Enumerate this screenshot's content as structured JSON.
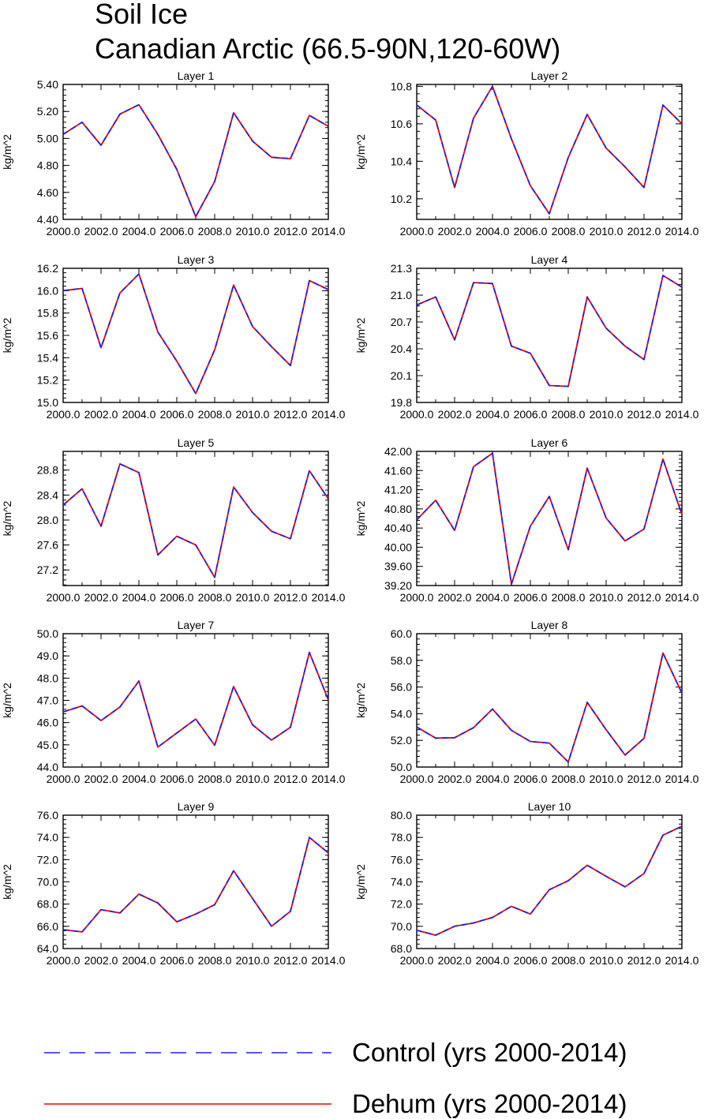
{
  "title": "Soil Ice",
  "subtitle": "Canadian Arctic (66.5-90N,120-60W)",
  "colors": {
    "control": "#2020dd",
    "dehum": "#ee0000",
    "axis": "#000000"
  },
  "legend": [
    {
      "label": "Control (yrs 2000-2014)",
      "style": "dashed",
      "color": "#2020dd"
    },
    {
      "label": "Dehum (yrs 2000-2014)",
      "style": "solid",
      "color": "#ee0000"
    }
  ],
  "chart_data": [
    {
      "type": "line",
      "title": "Layer 1",
      "ylabel": "kg/m^2",
      "x": [
        2000,
        2001,
        2002,
        2003,
        2004,
        2005,
        2006,
        2007,
        2008,
        2009,
        2010,
        2011,
        2012,
        2013,
        2014
      ],
      "xlim": [
        2000,
        2014
      ],
      "xticks": [
        "2000.0",
        "2002.0",
        "2004.0",
        "2006.0",
        "2008.0",
        "2010.0",
        "2012.0",
        "2014.0"
      ],
      "ylim": [
        4.4,
        5.4
      ],
      "yticks": [
        "4.40",
        "4.60",
        "4.80",
        "5.00",
        "5.20",
        "5.40"
      ],
      "series": [
        {
          "name": "Control (yrs 2000-2014)",
          "values": [
            5.03,
            5.12,
            4.95,
            5.18,
            5.25,
            5.03,
            4.77,
            4.42,
            4.68,
            5.19,
            4.98,
            4.86,
            4.85,
            5.17,
            5.09
          ]
        },
        {
          "name": "Dehum (yrs 2000-2014)",
          "values": [
            5.03,
            5.12,
            4.95,
            5.18,
            5.25,
            5.03,
            4.77,
            4.42,
            4.68,
            5.19,
            4.98,
            4.86,
            4.85,
            5.17,
            5.09
          ]
        }
      ]
    },
    {
      "type": "line",
      "title": "Layer 2",
      "ylabel": "kg/m^2",
      "x": [
        2000,
        2001,
        2002,
        2003,
        2004,
        2005,
        2006,
        2007,
        2008,
        2009,
        2010,
        2011,
        2012,
        2013,
        2014
      ],
      "xlim": [
        2000,
        2014
      ],
      "xticks": [
        "2000.0",
        "2002.0",
        "2004.0",
        "2006.0",
        "2008.0",
        "2010.0",
        "2012.0",
        "2014.0"
      ],
      "ylim": [
        10.09,
        10.81
      ],
      "yticks": [
        "10.2",
        "10.4",
        "10.6",
        "10.8"
      ],
      "series": [
        {
          "name": "Control (yrs 2000-2014)",
          "values": [
            10.7,
            10.62,
            10.26,
            10.63,
            10.8,
            10.52,
            10.27,
            10.12,
            10.42,
            10.65,
            10.47,
            10.37,
            10.26,
            10.7,
            10.6
          ]
        },
        {
          "name": "Dehum (yrs 2000-2014)",
          "values": [
            10.7,
            10.62,
            10.26,
            10.63,
            10.8,
            10.52,
            10.27,
            10.12,
            10.42,
            10.65,
            10.47,
            10.37,
            10.26,
            10.7,
            10.6
          ]
        }
      ]
    },
    {
      "type": "line",
      "title": "Layer 3",
      "ylabel": "kg/m^2",
      "x": [
        2000,
        2001,
        2002,
        2003,
        2004,
        2005,
        2006,
        2007,
        2008,
        2009,
        2010,
        2011,
        2012,
        2013,
        2014
      ],
      "xlim": [
        2000,
        2014
      ],
      "xticks": [
        "2000.0",
        "2002.0",
        "2004.0",
        "2006.0",
        "2008.0",
        "2010.0",
        "2012.0",
        "2014.0"
      ],
      "ylim": [
        15.0,
        16.2
      ],
      "yticks": [
        "15.0",
        "15.2",
        "15.4",
        "15.6",
        "15.8",
        "16.0",
        "16.2"
      ],
      "series": [
        {
          "name": "Control (yrs 2000-2014)",
          "values": [
            16.0,
            16.02,
            15.49,
            15.98,
            16.15,
            15.63,
            15.37,
            15.08,
            15.47,
            16.05,
            15.68,
            15.5,
            15.33,
            16.09,
            16.01
          ]
        },
        {
          "name": "Dehum (yrs 2000-2014)",
          "values": [
            16.0,
            16.02,
            15.49,
            15.98,
            16.15,
            15.63,
            15.37,
            15.08,
            15.47,
            16.05,
            15.68,
            15.5,
            15.33,
            16.09,
            16.01
          ]
        }
      ]
    },
    {
      "type": "line",
      "title": "Layer 4",
      "ylabel": "kg/m^2",
      "x": [
        2000,
        2001,
        2002,
        2003,
        2004,
        2005,
        2006,
        2007,
        2008,
        2009,
        2010,
        2011,
        2012,
        2013,
        2014
      ],
      "xlim": [
        2000,
        2014
      ],
      "xticks": [
        "2000.0",
        "2002.0",
        "2004.0",
        "2006.0",
        "2008.0",
        "2010.0",
        "2012.0",
        "2014.0"
      ],
      "ylim": [
        19.8,
        21.3
      ],
      "yticks": [
        "19.8",
        "20.1",
        "20.4",
        "20.7",
        "21.0",
        "21.3"
      ],
      "series": [
        {
          "name": "Control (yrs 2000-2014)",
          "values": [
            20.89,
            20.98,
            20.5,
            21.14,
            21.13,
            20.43,
            20.35,
            19.99,
            19.98,
            20.98,
            20.63,
            20.43,
            20.28,
            21.22,
            21.09
          ]
        },
        {
          "name": "Dehum (yrs 2000-2014)",
          "values": [
            20.89,
            20.98,
            20.5,
            21.14,
            21.13,
            20.43,
            20.35,
            19.99,
            19.98,
            20.98,
            20.63,
            20.43,
            20.28,
            21.22,
            21.09
          ]
        }
      ]
    },
    {
      "type": "line",
      "title": "Layer 5",
      "ylabel": "kg/m^2",
      "x": [
        2000,
        2001,
        2002,
        2003,
        2004,
        2005,
        2006,
        2007,
        2008,
        2009,
        2010,
        2011,
        2012,
        2013,
        2014
      ],
      "xlim": [
        2000,
        2014
      ],
      "xticks": [
        "2000.0",
        "2002.0",
        "2004.0",
        "2006.0",
        "2008.0",
        "2010.0",
        "2012.0",
        "2014.0"
      ],
      "ylim": [
        26.95,
        29.1
      ],
      "yticks": [
        "27.2",
        "27.6",
        "28.0",
        "28.4",
        "28.8"
      ],
      "series": [
        {
          "name": "Control (yrs 2000-2014)",
          "values": [
            28.24,
            28.5,
            27.9,
            28.9,
            28.76,
            27.44,
            27.74,
            27.6,
            27.08,
            28.53,
            28.12,
            27.82,
            27.7,
            28.79,
            28.34
          ]
        },
        {
          "name": "Dehum (yrs 2000-2014)",
          "values": [
            28.24,
            28.5,
            27.9,
            28.9,
            28.76,
            27.44,
            27.74,
            27.6,
            27.08,
            28.53,
            28.12,
            27.82,
            27.7,
            28.79,
            28.34
          ]
        }
      ]
    },
    {
      "type": "line",
      "title": "Layer 6",
      "ylabel": "kg/m^2",
      "x": [
        2000,
        2001,
        2002,
        2003,
        2004,
        2005,
        2006,
        2007,
        2008,
        2009,
        2010,
        2011,
        2012,
        2013,
        2014
      ],
      "xlim": [
        2000,
        2014
      ],
      "xticks": [
        "2000.0",
        "2002.0",
        "2004.0",
        "2006.0",
        "2008.0",
        "2010.0",
        "2012.0",
        "2014.0"
      ],
      "ylim": [
        39.2,
        42.0
      ],
      "yticks": [
        "39.20",
        "39.60",
        "40.00",
        "40.40",
        "40.80",
        "41.20",
        "41.60",
        "42.00"
      ],
      "series": [
        {
          "name": "Control (yrs 2000-2014)",
          "values": [
            40.57,
            40.98,
            40.35,
            41.68,
            41.96,
            39.23,
            40.44,
            41.06,
            39.95,
            41.65,
            40.61,
            40.13,
            40.38,
            41.84,
            40.68
          ]
        },
        {
          "name": "Dehum (yrs 2000-2014)",
          "values": [
            40.57,
            40.98,
            40.35,
            41.68,
            41.96,
            39.23,
            40.44,
            41.06,
            39.95,
            41.65,
            40.61,
            40.13,
            40.38,
            41.84,
            40.68
          ]
        }
      ]
    },
    {
      "type": "line",
      "title": "Layer 7",
      "ylabel": "kg/m^2",
      "x": [
        2000,
        2001,
        2002,
        2003,
        2004,
        2005,
        2006,
        2007,
        2008,
        2009,
        2010,
        2011,
        2012,
        2013,
        2014
      ],
      "xlim": [
        2000,
        2014
      ],
      "xticks": [
        "2000.0",
        "2002.0",
        "2004.0",
        "2006.0",
        "2008.0",
        "2010.0",
        "2012.0",
        "2014.0"
      ],
      "ylim": [
        44.0,
        50.0
      ],
      "yticks": [
        "44.0",
        "45.0",
        "46.0",
        "47.0",
        "48.0",
        "49.0",
        "50.0"
      ],
      "series": [
        {
          "name": "Control (yrs 2000-2014)",
          "values": [
            46.48,
            46.75,
            46.09,
            46.7,
            47.87,
            44.9,
            45.53,
            46.16,
            44.98,
            47.62,
            45.9,
            45.21,
            45.79,
            49.16,
            47.02
          ]
        },
        {
          "name": "Dehum (yrs 2000-2014)",
          "values": [
            46.48,
            46.75,
            46.09,
            46.7,
            47.87,
            44.9,
            45.53,
            46.16,
            44.98,
            47.62,
            45.9,
            45.21,
            45.79,
            49.16,
            47.02
          ]
        }
      ]
    },
    {
      "type": "line",
      "title": "Layer 8",
      "ylabel": "kg/m^2",
      "x": [
        2000,
        2001,
        2002,
        2003,
        2004,
        2005,
        2006,
        2007,
        2008,
        2009,
        2010,
        2011,
        2012,
        2013,
        2014
      ],
      "xlim": [
        2000,
        2014
      ],
      "xticks": [
        "2000.0",
        "2002.0",
        "2004.0",
        "2006.0",
        "2008.0",
        "2010.0",
        "2012.0",
        "2014.0"
      ],
      "ylim": [
        50.0,
        60.0
      ],
      "yticks": [
        "50.0",
        "52.0",
        "54.0",
        "56.0",
        "58.0",
        "60.0"
      ],
      "series": [
        {
          "name": "Control (yrs 2000-2014)",
          "values": [
            53.0,
            52.17,
            52.2,
            52.95,
            54.35,
            52.75,
            51.92,
            51.8,
            50.38,
            54.85,
            52.8,
            50.9,
            52.15,
            58.55,
            55.55
          ]
        },
        {
          "name": "Dehum (yrs 2000-2014)",
          "values": [
            53.0,
            52.17,
            52.2,
            52.95,
            54.35,
            52.75,
            51.92,
            51.8,
            50.38,
            54.85,
            52.8,
            50.9,
            52.15,
            58.55,
            55.55
          ]
        }
      ]
    },
    {
      "type": "line",
      "title": "Layer 9",
      "ylabel": "kg/m^2",
      "x": [
        2000,
        2001,
        2002,
        2003,
        2004,
        2005,
        2006,
        2007,
        2008,
        2009,
        2010,
        2011,
        2012,
        2013,
        2014
      ],
      "xlim": [
        2000,
        2014
      ],
      "xticks": [
        "2000.0",
        "2002.0",
        "2004.0",
        "2006.0",
        "2008.0",
        "2010.0",
        "2012.0",
        "2014.0"
      ],
      "ylim": [
        64.0,
        76.0
      ],
      "yticks": [
        "64.0",
        "66.0",
        "68.0",
        "70.0",
        "72.0",
        "74.0",
        "76.0"
      ],
      "series": [
        {
          "name": "Control (yrs 2000-2014)",
          "values": [
            65.7,
            65.5,
            67.5,
            67.2,
            68.9,
            68.1,
            66.4,
            67.1,
            67.95,
            71.0,
            68.5,
            66.0,
            67.35,
            74.0,
            72.6
          ]
        },
        {
          "name": "Dehum (yrs 2000-2014)",
          "values": [
            65.7,
            65.5,
            67.5,
            67.2,
            68.9,
            68.1,
            66.4,
            67.1,
            67.95,
            71.0,
            68.5,
            66.0,
            67.35,
            74.0,
            72.6
          ]
        }
      ]
    },
    {
      "type": "line",
      "title": "Layer 10",
      "ylabel": "kg/m^2",
      "x": [
        2000,
        2001,
        2002,
        2003,
        2004,
        2005,
        2006,
        2007,
        2008,
        2009,
        2010,
        2011,
        2012,
        2013,
        2014
      ],
      "xlim": [
        2000,
        2014
      ],
      "xticks": [
        "2000.0",
        "2002.0",
        "2004.0",
        "2006.0",
        "2008.0",
        "2010.0",
        "2012.0",
        "2014.0"
      ],
      "ylim": [
        68.0,
        80.0
      ],
      "yticks": [
        "68.0",
        "70.0",
        "72.0",
        "74.0",
        "76.0",
        "78.0",
        "80.0"
      ],
      "series": [
        {
          "name": "Control (yrs 2000-2014)",
          "values": [
            69.65,
            69.2,
            70.0,
            70.3,
            70.8,
            71.8,
            71.1,
            73.3,
            74.1,
            75.5,
            74.5,
            73.55,
            74.75,
            78.2,
            79.0
          ]
        },
        {
          "name": "Dehum (yrs 2000-2014)",
          "values": [
            69.65,
            69.2,
            70.0,
            70.3,
            70.8,
            71.8,
            71.1,
            73.3,
            74.1,
            75.5,
            74.5,
            73.55,
            74.75,
            78.2,
            79.0
          ]
        }
      ]
    }
  ]
}
